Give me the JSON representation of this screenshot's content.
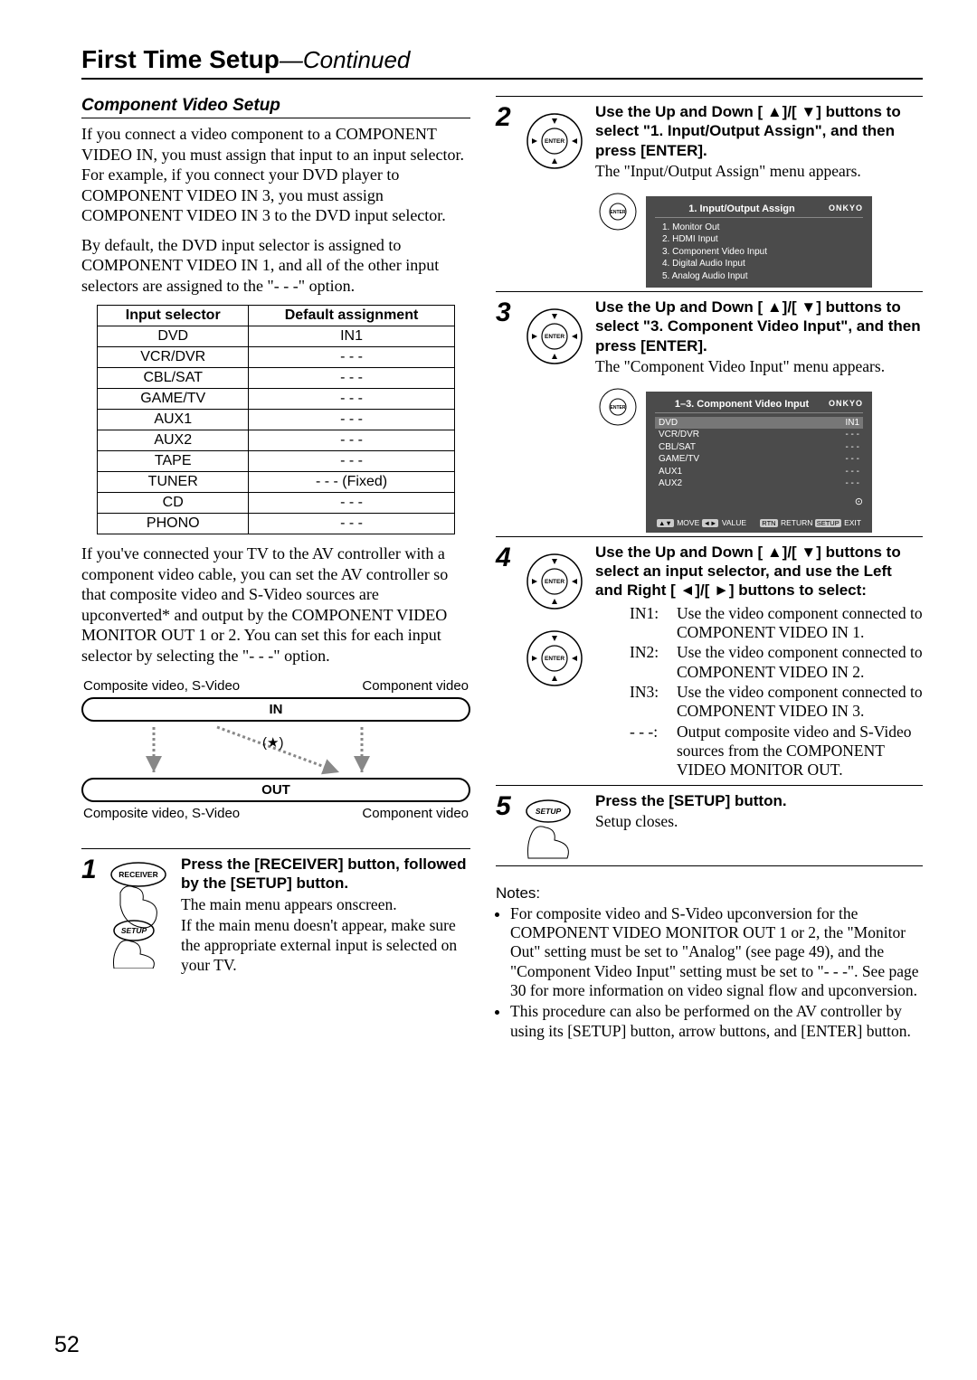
{
  "page": {
    "title_main": "First Time Setup",
    "title_cont": "—Continued",
    "number": "52"
  },
  "left": {
    "subheading": "Component Video Setup",
    "p1": "If you connect a video component to a COMPONENT VIDEO IN, you must assign that input to an input selector. For example, if you connect your DVD player to COMPONENT VIDEO IN 3, you must assign COMPONENT VIDEO IN 3 to the DVD input selector.",
    "p2": "By default, the DVD input selector is assigned to COMPONENT VIDEO IN 1, and all of the other input selectors are assigned to the \"- - -\" option.",
    "table": {
      "head1": "Input selector",
      "head2": "Default assignment",
      "rows": [
        {
          "sel": "DVD",
          "val": "IN1"
        },
        {
          "sel": "VCR/DVR",
          "val": "- - -"
        },
        {
          "sel": "CBL/SAT",
          "val": "- - -"
        },
        {
          "sel": "GAME/TV",
          "val": "- - -"
        },
        {
          "sel": "AUX1",
          "val": "- - -"
        },
        {
          "sel": "AUX2",
          "val": "- - -"
        },
        {
          "sel": "TAPE",
          "val": "- - -"
        },
        {
          "sel": "TUNER",
          "val": "- - - (Fixed)"
        },
        {
          "sel": "CD",
          "val": "- - -"
        },
        {
          "sel": "PHONO",
          "val": "- - -"
        }
      ]
    },
    "p3": "If you've connected your TV to the AV controller with a component video cable, you can set the AV controller so that composite video and S-Video sources are upconverted* and output by the COMPONENT VIDEO MONITOR OUT 1 or 2. You can set this for each input selector by selecting the \"- - -\" option.",
    "flow": {
      "top_left": "Composite video, S-Video",
      "top_right": "Component video",
      "in_label": "IN",
      "out_label": "OUT",
      "bot_left": "Composite video, S-Video",
      "bot_right": "Component video",
      "star": "(★)"
    }
  },
  "step1": {
    "num": "1",
    "bold": "Press the [RECEIVER] button, followed by the [SETUP] button.",
    "text1": "The main menu appears onscreen.",
    "text2": "If the main menu doesn't appear, make sure the appropriate external input is selected on your TV.",
    "btn_receiver": "RECEIVER",
    "btn_setup": "SETUP"
  },
  "step2": {
    "num": "2",
    "bold": "Use the Up and Down [ ▲]/[ ▼] buttons to select \"1. Input/Output Assign\", and then press [ENTER].",
    "text": "The \"Input/Output Assign\" menu appears.",
    "osd_brand": "ONKYO",
    "osd_title": "1.   Input/Output Assign",
    "osd_items": [
      "1.    Monitor Out",
      "2.    HDMI Input",
      "3.    Component Video Input",
      "4.    Digital Audio Input",
      "5.    Analog Audio Input"
    ]
  },
  "step3": {
    "num": "3",
    "bold": "Use the Up and Down [ ▲]/[ ▼] buttons to select \"3. Component Video Input\", and then press [ENTER].",
    "text": "The \"Component Video Input\" menu appears.",
    "osd_brand": "ONKYO",
    "osd_title": "1–3.   Component Video Input",
    "osd_rows": [
      {
        "l": "DVD",
        "r": "IN1"
      },
      {
        "l": "VCR/DVR",
        "r": "- - -"
      },
      {
        "l": "CBL/SAT",
        "r": "- - -"
      },
      {
        "l": "GAME/TV",
        "r": "- - -"
      },
      {
        "l": "AUX1",
        "r": "- - -"
      },
      {
        "l": "AUX2",
        "r": "- - -"
      }
    ],
    "osd_footer_l": "MOVE   VALUE",
    "osd_footer_r": "RETURN   EXIT"
  },
  "step4": {
    "num": "4",
    "bold": "Use the Up and Down [ ▲]/[ ▼] buttons to select an input selector, and use the Left and Right [ ◄]/[ ►] buttons to select:",
    "rows": [
      {
        "lbl": "IN1:",
        "txt": "Use the video component connected to COMPONENT VIDEO IN 1."
      },
      {
        "lbl": "IN2:",
        "txt": "Use the video component connected to COMPONENT VIDEO IN 2."
      },
      {
        "lbl": "IN3:",
        "txt": "Use the video component connected to COMPONENT VIDEO IN 3."
      },
      {
        "lbl": "- - -:",
        "txt": "Output composite video and S-Video sources from the COMPONENT VIDEO MONITOR OUT."
      }
    ]
  },
  "step5": {
    "num": "5",
    "bold": "Press the [SETUP] button.",
    "text": "Setup closes.",
    "btn_setup": "SETUP"
  },
  "notes": {
    "head": "Notes:",
    "items": [
      "For composite video and S-Video upconversion for the COMPONENT VIDEO MONITOR OUT 1 or 2, the \"Monitor Out\" setting must be set to \"Analog\" (see page 49), and the \"Component Video Input\" setting must be set to \"- - -\". See page 30 for more information on video signal flow and upconversion.",
      "This procedure can also be performed on the AV controller by using its [SETUP] button, arrow buttons, and [ENTER] button."
    ]
  },
  "enter_label": "ENTER"
}
